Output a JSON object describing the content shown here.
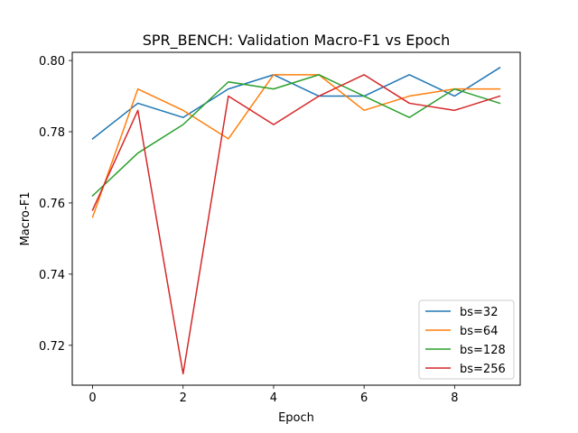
{
  "chart_data": {
    "type": "line",
    "title": "SPR_BENCH: Validation Macro-F1 vs Epoch",
    "xlabel": "Epoch",
    "ylabel": "Macro-F1",
    "x": [
      0,
      1,
      2,
      3,
      4,
      5,
      6,
      7,
      8,
      9
    ],
    "xlim": [
      -0.45,
      9.45
    ],
    "ylim": [
      0.7088,
      0.8023
    ],
    "xticks": [
      0,
      2,
      4,
      6,
      8
    ],
    "yticks": [
      0.72,
      0.74,
      0.76,
      0.78,
      0.8
    ],
    "ytick_labels": [
      "0.72",
      "0.74",
      "0.76",
      "0.78",
      "0.80"
    ],
    "xtick_labels": [
      "0",
      "2",
      "4",
      "6",
      "8"
    ],
    "grid": false,
    "legend_position": "lower-right",
    "series": [
      {
        "name": "bs=32",
        "color": "#1f77b4",
        "values": [
          0.778,
          0.788,
          0.784,
          0.792,
          0.796,
          0.79,
          0.79,
          0.796,
          0.79,
          0.798
        ]
      },
      {
        "name": "bs=64",
        "color": "#ff7f0e",
        "values": [
          0.756,
          0.792,
          0.786,
          0.778,
          0.796,
          0.796,
          0.786,
          0.79,
          0.792,
          0.792
        ]
      },
      {
        "name": "bs=128",
        "color": "#2ca02c",
        "values": [
          0.762,
          0.774,
          0.782,
          0.794,
          0.792,
          0.796,
          0.79,
          0.784,
          0.792,
          0.788
        ]
      },
      {
        "name": "bs=256",
        "color": "#d62728",
        "values": [
          0.758,
          0.786,
          0.712,
          0.79,
          0.782,
          0.79,
          0.796,
          0.788,
          0.786,
          0.79
        ]
      }
    ]
  }
}
